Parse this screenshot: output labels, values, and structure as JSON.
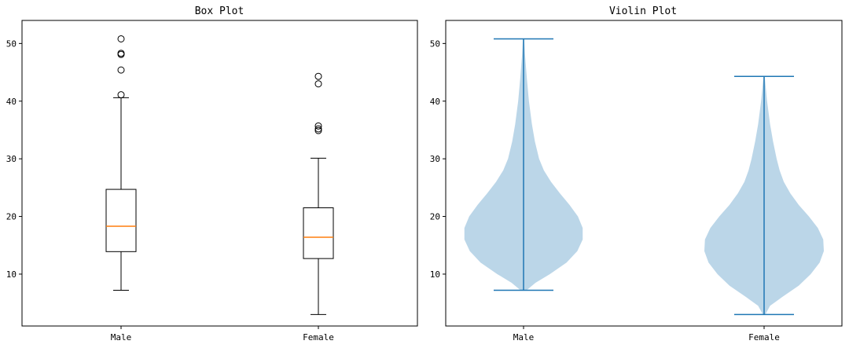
{
  "chart_data": [
    {
      "type": "box",
      "title": "Box Plot",
      "xlabel": "",
      "ylabel": "",
      "categories": [
        "Male",
        "Female"
      ],
      "ylim": [
        1,
        54
      ],
      "yticks": [
        10,
        20,
        30,
        40,
        50
      ],
      "grid": false,
      "median_color": "#ff7f0e",
      "box_color": "#000000",
      "series": [
        {
          "category": "Male",
          "whisker_low": 7.2,
          "q1": 13.9,
          "median": 18.3,
          "q3": 24.7,
          "whisker_high": 40.6,
          "outliers": [
            41.1,
            45.4,
            48.1,
            48.3,
            50.8
          ]
        },
        {
          "category": "Female",
          "whisker_low": 3.0,
          "q1": 12.7,
          "median": 16.4,
          "q3": 21.5,
          "whisker_high": 30.1,
          "outliers": [
            34.9,
            35.2,
            35.7,
            43.0,
            44.3
          ]
        }
      ]
    },
    {
      "type": "violin",
      "title": "Violin Plot",
      "xlabel": "",
      "ylabel": "",
      "categories": [
        "Male",
        "Female"
      ],
      "ylim": [
        1,
        54
      ],
      "yticks": [
        10,
        20,
        30,
        40,
        50
      ],
      "grid": false,
      "body_color": "#1f77b4",
      "body_alpha": 0.3,
      "line_color": "#1f77b4",
      "series": [
        {
          "category": "Male",
          "min": 7.2,
          "max": 50.8,
          "density_y": [
            7.2,
            8.5,
            10,
            12,
            14,
            16,
            18,
            20,
            22,
            24,
            26,
            28,
            30,
            33,
            36,
            40,
            44,
            48,
            50.8
          ],
          "density_width": [
            0.05,
            0.2,
            0.44,
            0.72,
            0.9,
            0.99,
            0.99,
            0.91,
            0.77,
            0.61,
            0.46,
            0.34,
            0.26,
            0.19,
            0.14,
            0.09,
            0.055,
            0.025,
            0.01
          ]
        },
        {
          "category": "Female",
          "min": 3.0,
          "max": 44.3,
          "density_y": [
            3.0,
            4.5,
            6,
            8,
            10,
            12,
            14,
            16,
            18,
            20,
            22,
            24,
            26,
            28,
            30,
            33,
            36,
            40,
            44.3
          ],
          "density_width": [
            0.02,
            0.1,
            0.3,
            0.58,
            0.78,
            0.93,
            1.0,
            0.99,
            0.9,
            0.75,
            0.58,
            0.44,
            0.33,
            0.26,
            0.21,
            0.15,
            0.1,
            0.05,
            0.01
          ]
        }
      ]
    }
  ]
}
